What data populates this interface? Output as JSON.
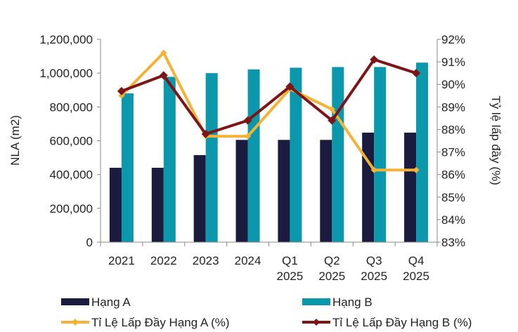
{
  "chart_data": {
    "type": "bar",
    "categories": [
      [
        "2021"
      ],
      [
        "2022"
      ],
      [
        "2023"
      ],
      [
        "2024"
      ],
      [
        "Q1",
        "2025"
      ],
      [
        "Q2",
        "2025"
      ],
      [
        "Q3",
        "2025"
      ],
      [
        "Q4",
        "2025"
      ]
    ],
    "ylabel": "NLA (m2)",
    "y2label": "Tỷ lệ lấp đầy (%)",
    "ylim": [
      0,
      1200000
    ],
    "y2lim": [
      83,
      92
    ],
    "y_ticks": [
      "0",
      "200,000",
      "400,000",
      "600,000",
      "800,000",
      "1,000,000",
      "1,200,000"
    ],
    "y2_ticks": [
      "83%",
      "84%",
      "85%",
      "86%",
      "87%",
      "88%",
      "89%",
      "90%",
      "91%",
      "92%"
    ],
    "bar_series": [
      {
        "name": "Hạng A",
        "color": "#1b1a3f",
        "values": [
          440000,
          440000,
          515000,
          605000,
          605000,
          605000,
          648000,
          648000
        ]
      },
      {
        "name": "Hạng B",
        "color": "#0b97ac",
        "values": [
          880000,
          978000,
          1000000,
          1022000,
          1032000,
          1036000,
          1036000,
          1062000
        ]
      }
    ],
    "line_series": [
      {
        "name": "Tỉ Lệ Lấp Đầy Hạng A (%)",
        "color": "#f5b335",
        "values": [
          89.5,
          91.4,
          87.7,
          87.7,
          89.8,
          88.9,
          86.2,
          86.2
        ]
      },
      {
        "name": "Tỉ Lệ Lấp Đầy Hạng B (%)",
        "color": "#7d1416",
        "values": [
          89.7,
          90.4,
          87.8,
          88.4,
          89.9,
          88.4,
          91.1,
          90.5
        ]
      }
    ],
    "legend_position": "bottom"
  }
}
